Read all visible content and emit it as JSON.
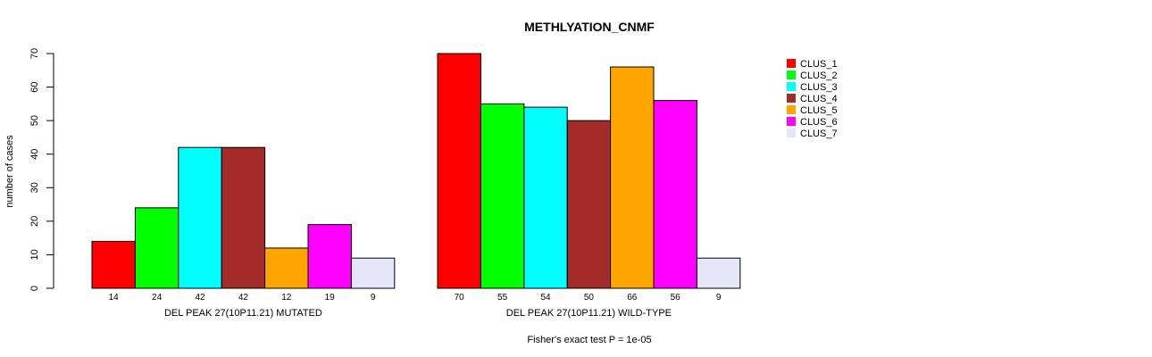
{
  "chart_data": {
    "type": "bar",
    "title": "METHLYATION_CNMF",
    "ylabel": "number of cases",
    "ylim": [
      0,
      70
    ],
    "yticks": [
      0,
      10,
      20,
      30,
      40,
      50,
      60,
      70
    ],
    "footer": "Fisher's exact test P = 1e-05",
    "legend_placement": "top-right",
    "series": [
      {
        "name": "CLUS_1",
        "color": "#ff0000"
      },
      {
        "name": "CLUS_2",
        "color": "#00ff00"
      },
      {
        "name": "CLUS_3",
        "color": "#00ffff"
      },
      {
        "name": "CLUS_4",
        "color": "#a52a2a"
      },
      {
        "name": "CLUS_5",
        "color": "#ffa500"
      },
      {
        "name": "CLUS_6",
        "color": "#ff00ff"
      },
      {
        "name": "CLUS_7",
        "color": "#e6e6fa"
      }
    ],
    "groups": [
      {
        "xlabel": "DEL PEAK 27(10P11.21) MUTATED",
        "values": [
          14,
          24,
          42,
          42,
          12,
          19,
          9
        ]
      },
      {
        "xlabel": "DEL PEAK 27(10P11.21) WILD-TYPE",
        "values": [
          70,
          55,
          54,
          50,
          66,
          56,
          9
        ]
      }
    ]
  }
}
